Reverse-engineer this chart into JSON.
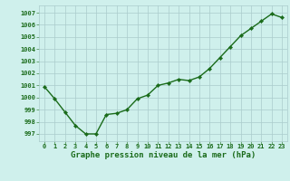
{
  "x": [
    0,
    1,
    2,
    3,
    4,
    5,
    6,
    7,
    8,
    9,
    10,
    11,
    12,
    13,
    14,
    15,
    16,
    17,
    18,
    19,
    20,
    21,
    22,
    23
  ],
  "y": [
    1000.9,
    999.9,
    998.8,
    997.7,
    997.0,
    997.0,
    998.6,
    998.7,
    999.0,
    999.9,
    1000.2,
    1001.0,
    1001.2,
    1001.5,
    1001.4,
    1001.7,
    1002.4,
    1003.3,
    1004.2,
    1005.1,
    1005.7,
    1006.3,
    1006.9,
    1006.6
  ],
  "line_color": "#1a6b1a",
  "marker": "D",
  "marker_size": 2.2,
  "line_width": 1.0,
  "background_color": "#cff0ec",
  "grid_color": "#aacccc",
  "ylabel_ticks": [
    997,
    998,
    999,
    1000,
    1001,
    1002,
    1003,
    1004,
    1005,
    1006,
    1007
  ],
  "xlabel_ticks": [
    0,
    1,
    2,
    3,
    4,
    5,
    6,
    7,
    8,
    9,
    10,
    11,
    12,
    13,
    14,
    15,
    16,
    17,
    18,
    19,
    20,
    21,
    22,
    23
  ],
  "ylim": [
    996.4,
    1007.6
  ],
  "xlim": [
    -0.5,
    23.5
  ],
  "xlabel": "Graphe pression niveau de la mer (hPa)",
  "tick_color": "#1a6b1a",
  "label_fontsize": 6.5,
  "tick_fontsize": 5.0
}
